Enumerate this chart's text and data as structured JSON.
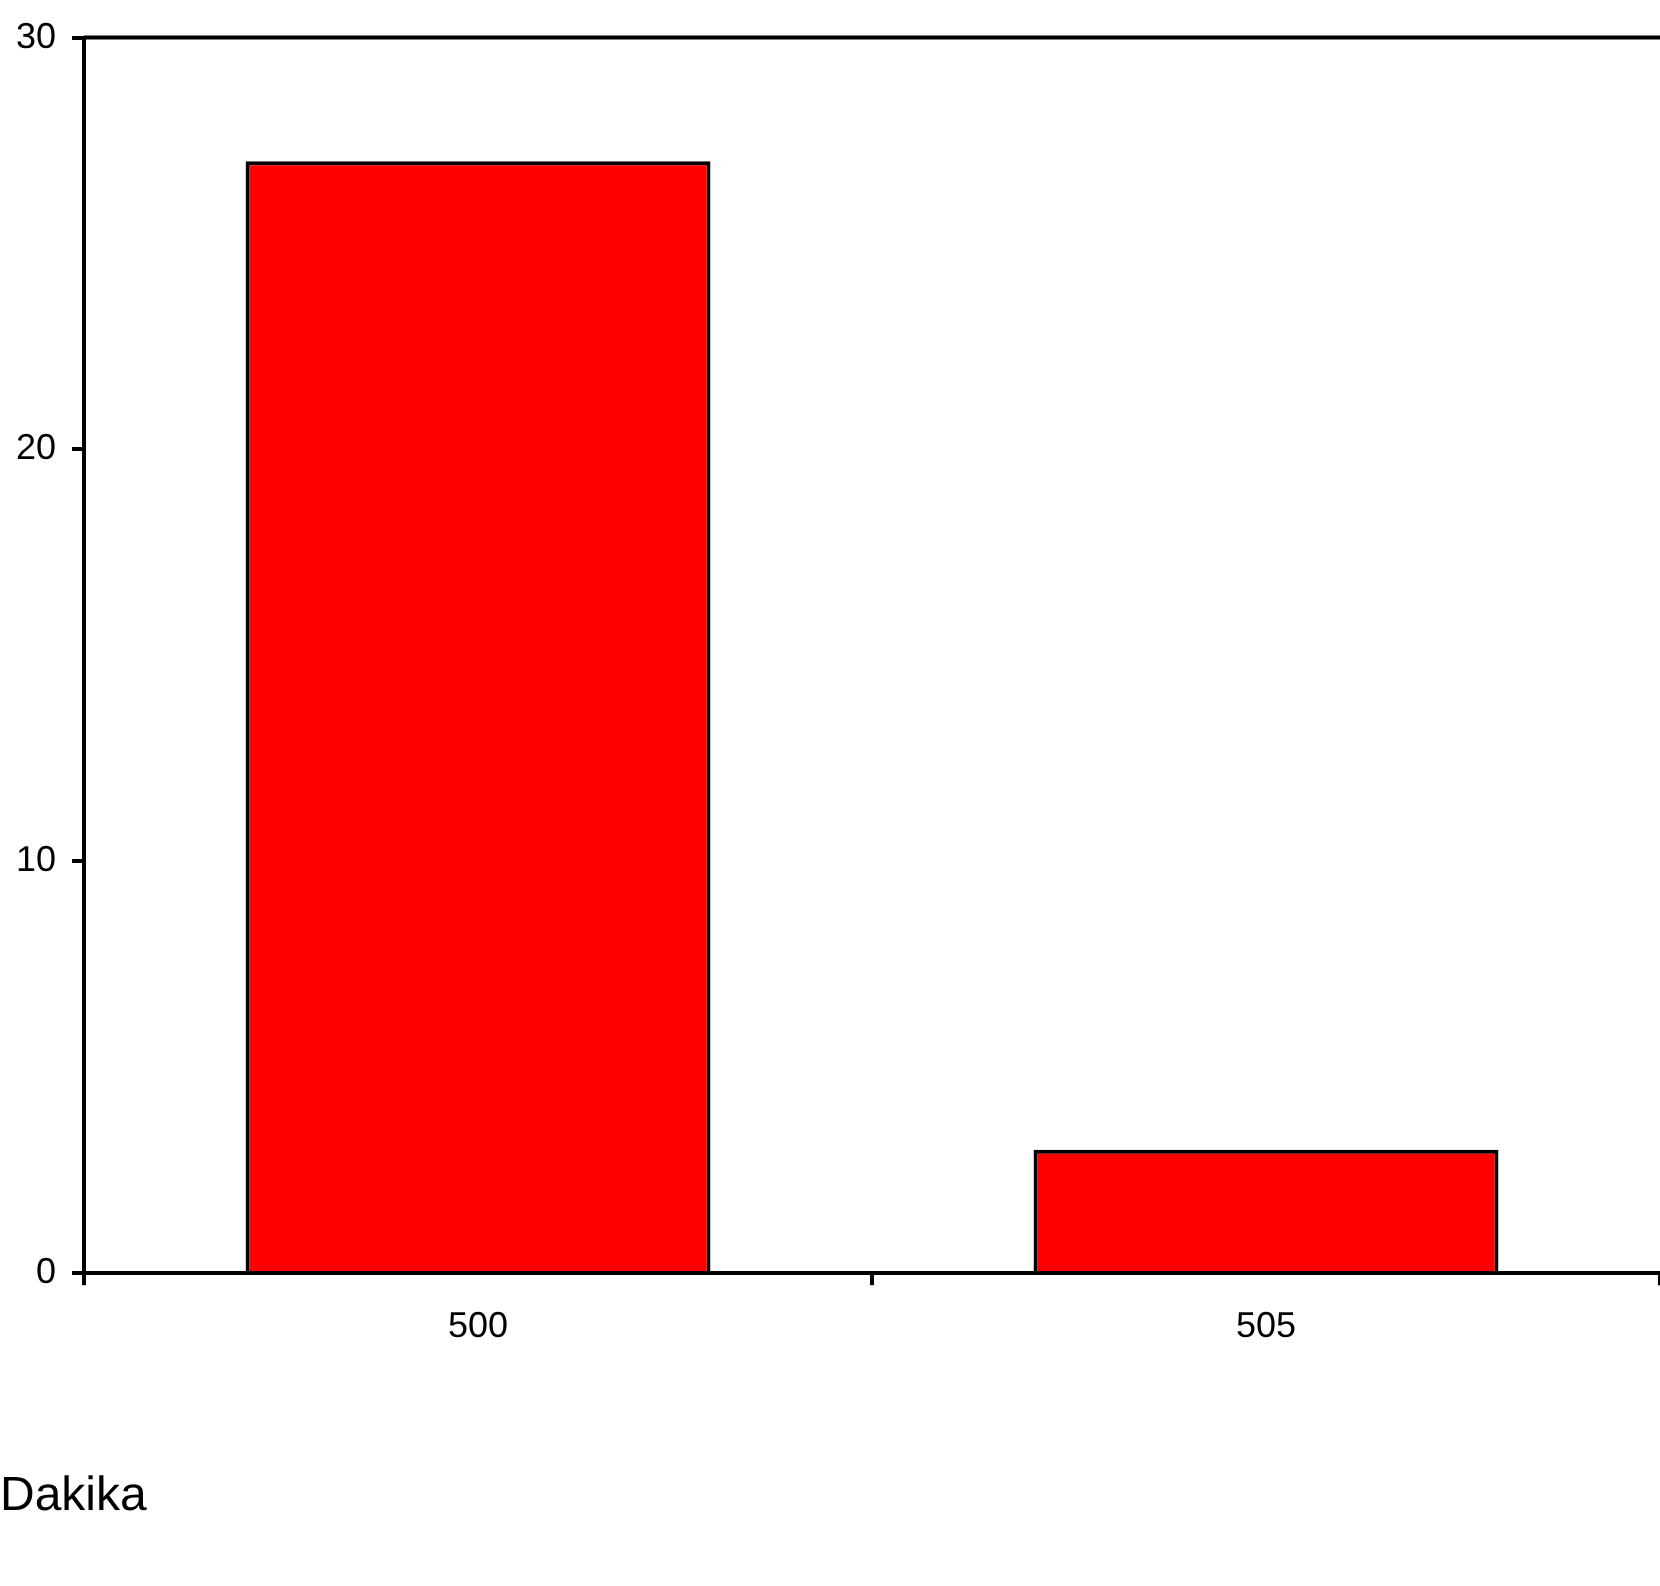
{
  "chart_data": {
    "type": "bar",
    "xlabel": "Dakika",
    "categories": [
      "500",
      "505"
    ],
    "series": [
      {
        "color": "#ff0000",
        "values": [
          27,
          3
        ]
      }
    ],
    "ylim": [
      0,
      30
    ],
    "yticks": [
      0,
      10,
      20,
      30
    ],
    "grid": false,
    "legend": false
  }
}
